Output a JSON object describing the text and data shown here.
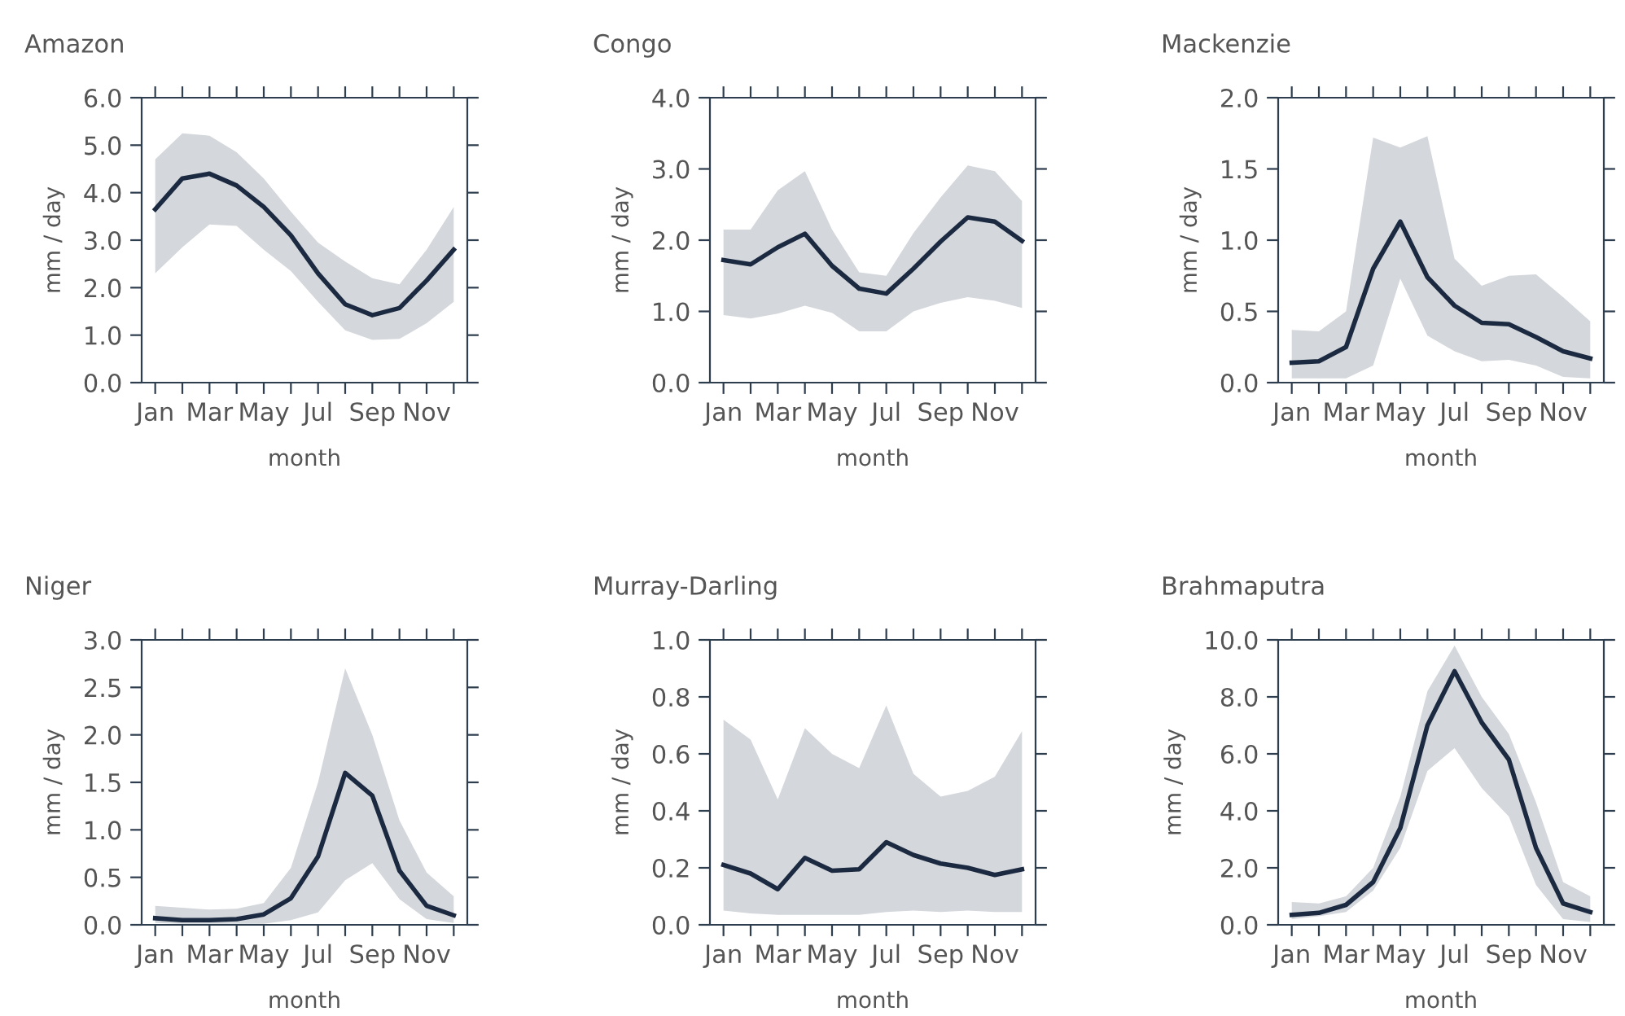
{
  "chart_data": [
    {
      "type": "line",
      "title": "Amazon",
      "xlabel": "month",
      "ylabel": "mm / day",
      "categories": [
        "Jan",
        null,
        "Mar",
        null,
        "May",
        null,
        "Jul",
        null,
        "Sep",
        null,
        "Nov",
        null
      ],
      "ylim": [
        0,
        6
      ],
      "yticks": [
        {
          "value": 0,
          "label": "0.0"
        },
        {
          "value": 1,
          "label": "1.0"
        },
        {
          "value": 2,
          "label": "2.0"
        },
        {
          "value": 3,
          "label": "3.0"
        },
        {
          "value": 4,
          "label": "4.0"
        },
        {
          "value": 5,
          "label": "5.0"
        },
        {
          "value": 6,
          "label": "6.0"
        }
      ],
      "series": [
        {
          "color": "#1b2a41",
          "values": [
            3.65,
            4.3,
            4.4,
            4.15,
            3.7,
            3.1,
            2.3,
            1.65,
            1.42,
            1.57,
            2.15,
            2.8
          ],
          "upper": [
            4.7,
            5.25,
            5.2,
            4.85,
            4.3,
            3.6,
            2.95,
            2.55,
            2.2,
            2.07,
            2.8,
            3.7
          ],
          "lower": [
            2.3,
            2.85,
            3.33,
            3.3,
            2.8,
            2.35,
            1.7,
            1.1,
            0.9,
            0.92,
            1.25,
            1.7
          ]
        }
      ]
    },
    {
      "type": "line",
      "title": "Congo",
      "xlabel": "month",
      "ylabel": "mm / day",
      "categories": [
        "Jan",
        null,
        "Mar",
        null,
        "May",
        null,
        "Jul",
        null,
        "Sep",
        null,
        "Nov",
        null
      ],
      "ylim": [
        0,
        4
      ],
      "yticks": [
        {
          "value": 0,
          "label": "0.0"
        },
        {
          "value": 1,
          "label": "1.0"
        },
        {
          "value": 2,
          "label": "2.0"
        },
        {
          "value": 3,
          "label": "3.0"
        },
        {
          "value": 4,
          "label": "4.0"
        }
      ],
      "series": [
        {
          "color": "#1b2a41",
          "values": [
            1.72,
            1.66,
            1.9,
            2.09,
            1.64,
            1.32,
            1.25,
            1.6,
            1.98,
            2.32,
            2.26,
            1.99
          ],
          "upper": [
            2.15,
            2.15,
            2.7,
            2.97,
            2.15,
            1.55,
            1.5,
            2.1,
            2.6,
            3.05,
            2.97,
            2.55
          ],
          "lower": [
            0.95,
            0.9,
            0.97,
            1.08,
            0.98,
            0.72,
            0.72,
            1.0,
            1.12,
            1.2,
            1.15,
            1.05
          ]
        }
      ]
    },
    {
      "type": "line",
      "title": "Mackenzie",
      "xlabel": "month",
      "ylabel": "mm / day",
      "categories": [
        "Jan",
        null,
        "Mar",
        null,
        "May",
        null,
        "Jul",
        null,
        "Sep",
        null,
        "Nov",
        null
      ],
      "ylim": [
        0,
        2
      ],
      "yticks": [
        {
          "value": 0,
          "label": "0.0"
        },
        {
          "value": 0.5,
          "label": "0.5"
        },
        {
          "value": 1,
          "label": "1.0"
        },
        {
          "value": 1.5,
          "label": "1.5"
        },
        {
          "value": 2,
          "label": "2.0"
        }
      ],
      "series": [
        {
          "color": "#1b2a41",
          "values": [
            0.14,
            0.15,
            0.25,
            0.8,
            1.13,
            0.74,
            0.54,
            0.42,
            0.41,
            0.32,
            0.22,
            0.17
          ],
          "upper": [
            0.37,
            0.36,
            0.5,
            1.72,
            1.65,
            1.73,
            0.87,
            0.68,
            0.75,
            0.76,
            0.6,
            0.43
          ],
          "lower": [
            0.03,
            0.03,
            0.03,
            0.12,
            0.73,
            0.33,
            0.22,
            0.15,
            0.16,
            0.12,
            0.04,
            0.03
          ]
        }
      ]
    },
    {
      "type": "line",
      "title": "Niger",
      "xlabel": "month",
      "ylabel": "mm / day",
      "categories": [
        "Jan",
        null,
        "Mar",
        null,
        "May",
        null,
        "Jul",
        null,
        "Sep",
        null,
        "Nov",
        null
      ],
      "ylim": [
        0,
        3
      ],
      "yticks": [
        {
          "value": 0,
          "label": "0.0"
        },
        {
          "value": 0.5,
          "label": "0.5"
        },
        {
          "value": 1,
          "label": "1.0"
        },
        {
          "value": 1.5,
          "label": "1.5"
        },
        {
          "value": 2,
          "label": "2.0"
        },
        {
          "value": 2.5,
          "label": "2.5"
        },
        {
          "value": 3,
          "label": "3.0"
        }
      ],
      "series": [
        {
          "color": "#1b2a41",
          "values": [
            0.07,
            0.05,
            0.05,
            0.06,
            0.11,
            0.28,
            0.72,
            1.6,
            1.36,
            0.57,
            0.2,
            0.1
          ],
          "upper": [
            0.2,
            0.18,
            0.16,
            0.17,
            0.23,
            0.6,
            1.5,
            2.7,
            2.0,
            1.1,
            0.55,
            0.3
          ],
          "lower": [
            0.02,
            0.01,
            0.01,
            0.01,
            0.01,
            0.05,
            0.13,
            0.47,
            0.65,
            0.27,
            0.06,
            0.02
          ]
        }
      ]
    },
    {
      "type": "line",
      "title": "Murray-Darling",
      "xlabel": "month",
      "ylabel": "mm / day",
      "categories": [
        "Jan",
        null,
        "Mar",
        null,
        "May",
        null,
        "Jul",
        null,
        "Sep",
        null,
        "Nov",
        null
      ],
      "ylim": [
        0,
        1
      ],
      "yticks": [
        {
          "value": 0,
          "label": "0.0"
        },
        {
          "value": 0.2,
          "label": "0.2"
        },
        {
          "value": 0.4,
          "label": "0.4"
        },
        {
          "value": 0.6,
          "label": "0.6"
        },
        {
          "value": 0.8,
          "label": "0.8"
        },
        {
          "value": 1,
          "label": "1.0"
        }
      ],
      "series": [
        {
          "color": "#1b2a41",
          "values": [
            0.21,
            0.18,
            0.125,
            0.235,
            0.19,
            0.195,
            0.29,
            0.245,
            0.215,
            0.2,
            0.175,
            0.195
          ],
          "upper": [
            0.72,
            0.65,
            0.44,
            0.69,
            0.6,
            0.55,
            0.77,
            0.53,
            0.45,
            0.47,
            0.52,
            0.68
          ],
          "lower": [
            0.05,
            0.04,
            0.035,
            0.035,
            0.035,
            0.035,
            0.045,
            0.05,
            0.045,
            0.05,
            0.045,
            0.045
          ]
        }
      ]
    },
    {
      "type": "line",
      "title": "Brahmaputra",
      "xlabel": "month",
      "ylabel": "mm / day",
      "categories": [
        "Jan",
        null,
        "Mar",
        null,
        "May",
        null,
        "Jul",
        null,
        "Sep",
        null,
        "Nov",
        null
      ],
      "ylim": [
        0,
        10
      ],
      "yticks": [
        {
          "value": 0,
          "label": "0.0"
        },
        {
          "value": 2,
          "label": "2.0"
        },
        {
          "value": 4,
          "label": "4.0"
        },
        {
          "value": 6,
          "label": "6.0"
        },
        {
          "value": 8,
          "label": "8.0"
        },
        {
          "value": 10,
          "label": "10.0"
        }
      ],
      "series": [
        {
          "color": "#1b2a41",
          "values": [
            0.35,
            0.42,
            0.7,
            1.5,
            3.4,
            7.0,
            8.9,
            7.1,
            5.8,
            2.7,
            0.75,
            0.45
          ],
          "upper": [
            0.8,
            0.75,
            1.0,
            2.0,
            4.5,
            8.2,
            9.8,
            8.0,
            6.7,
            4.3,
            1.5,
            1.0
          ],
          "lower": [
            0.2,
            0.3,
            0.45,
            1.2,
            2.7,
            5.4,
            6.2,
            4.8,
            3.8,
            1.4,
            0.2,
            0.1
          ]
        }
      ]
    }
  ]
}
